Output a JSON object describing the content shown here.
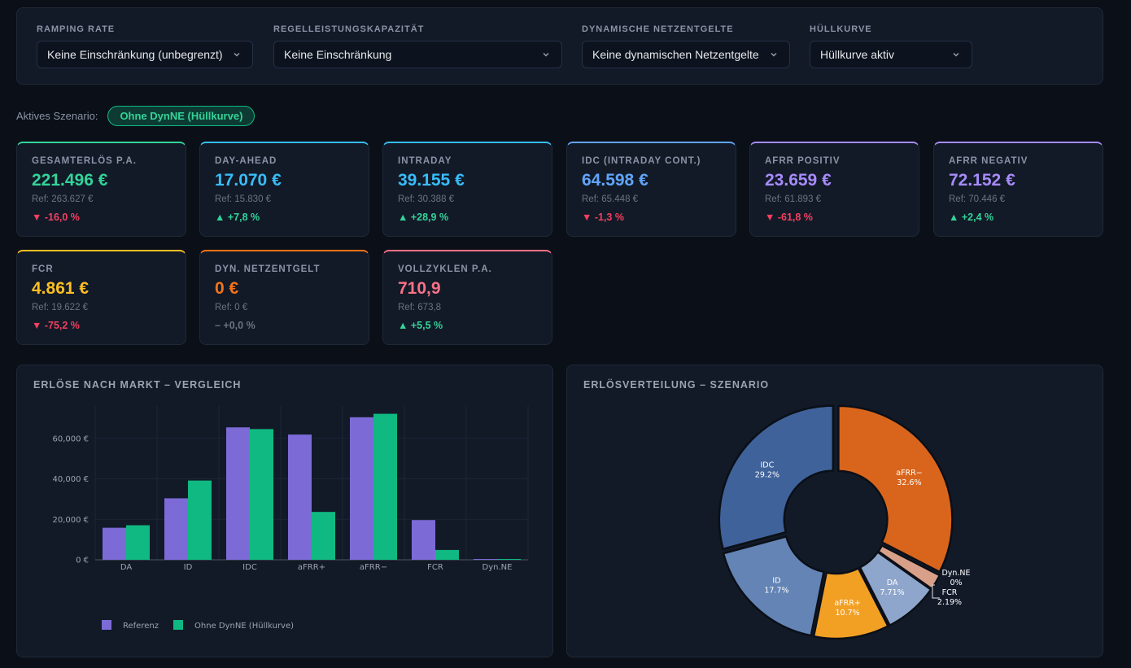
{
  "filters": [
    {
      "label": "RAMPING RATE",
      "value": "Keine Einschränkung (unbegrenzt)"
    },
    {
      "label": "REGELLEISTUNGSKAPAZITÄT",
      "value": "Keine Einschränkung"
    },
    {
      "label": "DYNAMISCHE NETZENTGELTE",
      "value": "Keine dynamischen Netzentgelte"
    },
    {
      "label": "HÜLLKURVE",
      "value": "Hüllkurve aktiv"
    }
  ],
  "scenario": {
    "label": "Aktives Szenario:",
    "value": "Ohne DynNE (Hüllkurve)"
  },
  "kpis": [
    {
      "label": "GESAMTERLÖS P.A.",
      "value": "221.496 €",
      "ref": "Ref: 263.627 €",
      "delta": "▼ -16,0 %",
      "accent": "#34d399",
      "delta_color": "#f43f5e"
    },
    {
      "label": "DAY-AHEAD",
      "value": "17.070 €",
      "ref": "Ref: 15.830 €",
      "delta": "▲ +7,8 %",
      "accent": "#38bdf8",
      "delta_color": "#34d399"
    },
    {
      "label": "INTRADAY",
      "value": "39.155 €",
      "ref": "Ref: 30.388 €",
      "delta": "▲ +28,9 %",
      "accent": "#38bdf8",
      "delta_color": "#34d399"
    },
    {
      "label": "IDC (INTRADAY CONT.)",
      "value": "64.598 €",
      "ref": "Ref: 65.448 €",
      "delta": "▼ -1,3 %",
      "accent": "#60a5fa",
      "delta_color": "#f43f5e"
    },
    {
      "label": "AFRR POSITIV",
      "value": "23.659 €",
      "ref": "Ref: 61.893 €",
      "delta": "▼ -61,8 %",
      "accent": "#a78bfa",
      "delta_color": "#f43f5e"
    },
    {
      "label": "AFRR NEGATIV",
      "value": "72.152 €",
      "ref": "Ref: 70.446 €",
      "delta": "▲ +2,4 %",
      "accent": "#a78bfa",
      "delta_color": "#34d399"
    },
    {
      "label": "FCR",
      "value": "4.861 €",
      "ref": "Ref: 19.622 €",
      "delta": "▼ -75,2 %",
      "accent": "#fbbf24",
      "delta_color": "#f43f5e"
    },
    {
      "label": "DYN. NETZENTGELT",
      "value": "0 €",
      "ref": "Ref: 0 €",
      "delta": "– +0,0 %",
      "accent": "#f97316",
      "delta_color": "#6b7280"
    },
    {
      "label": "VOLLZYKLEN P.A.",
      "value": "710,9",
      "ref": "Ref: 673,8",
      "delta": "▲ +5,5 %",
      "accent": "#fb7185",
      "delta_color": "#34d399"
    }
  ],
  "chart_data": [
    {
      "type": "bar",
      "title": "ERLÖSE NACH MARKT – VERGLEICH",
      "categories": [
        "DA",
        "ID",
        "IDC",
        "aFRR+",
        "aFRR−",
        "FCR",
        "Dyn.NE"
      ],
      "series": [
        {
          "name": "Referenz",
          "color": "#7c6bd6",
          "values": [
            15830,
            30388,
            65448,
            61893,
            70446,
            19622,
            0
          ]
        },
        {
          "name": "Ohne DynNE (Hüllkurve)",
          "color": "#10b981",
          "values": [
            17070,
            39155,
            64598,
            23659,
            72152,
            4861,
            0
          ]
        }
      ],
      "yticks": [
        "0 €",
        "20,000 €",
        "40,000 €",
        "60,000 €"
      ],
      "ylim": [
        0,
        76000
      ]
    },
    {
      "type": "pie",
      "title": "ERLÖSVERTEILUNG – SZENARIO",
      "slices": [
        {
          "name": "aFRR−",
          "pct": "32.6%",
          "value": 32.6,
          "color": "#d9651c"
        },
        {
          "name": "Dyn.NE",
          "pct": "0%",
          "value": 0.0,
          "color": "#e06a1f"
        },
        {
          "name": "FCR",
          "pct": "2.19%",
          "value": 2.19,
          "color": "#d9a089"
        },
        {
          "name": "DA",
          "pct": "7.71%",
          "value": 7.71,
          "color": "#8ea6cc"
        },
        {
          "name": "aFRR+",
          "pct": "10.7%",
          "value": 10.7,
          "color": "#f2a024"
        },
        {
          "name": "ID",
          "pct": "17.7%",
          "value": 17.7,
          "color": "#6384b4"
        },
        {
          "name": "IDC",
          "pct": "29.2%",
          "value": 29.2,
          "color": "#3f629a"
        }
      ]
    }
  ]
}
